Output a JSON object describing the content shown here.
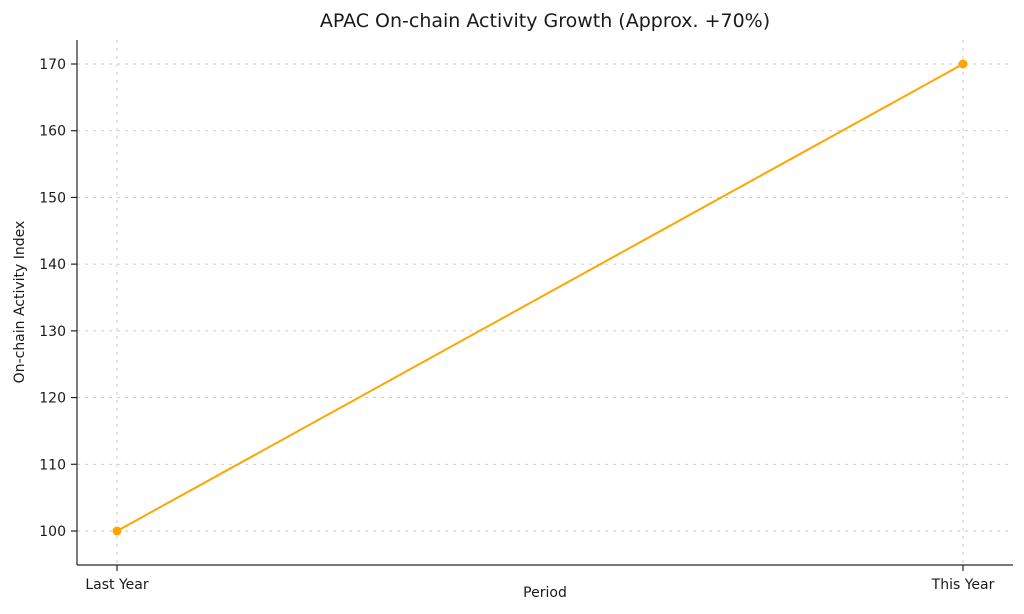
{
  "chart_data": {
    "type": "line",
    "title": "APAC On-chain Activity Growth (Approx. +70%)",
    "xlabel": "Period",
    "ylabel": "On-chain Activity Index",
    "categories": [
      "Last Year",
      "This Year"
    ],
    "series": [
      {
        "name": "On-chain Activity Index",
        "values": [
          100,
          170
        ]
      }
    ],
    "yticks": [
      100,
      110,
      120,
      130,
      140,
      150,
      160,
      170
    ],
    "ylim": [
      96.5,
      173.5
    ],
    "grid": true,
    "legend": "none",
    "line_color": "#ffa500",
    "marker": "circle",
    "grid_color": "#c9c9c9",
    "axis_color": "#262626",
    "background_color": "#ffffff"
  }
}
